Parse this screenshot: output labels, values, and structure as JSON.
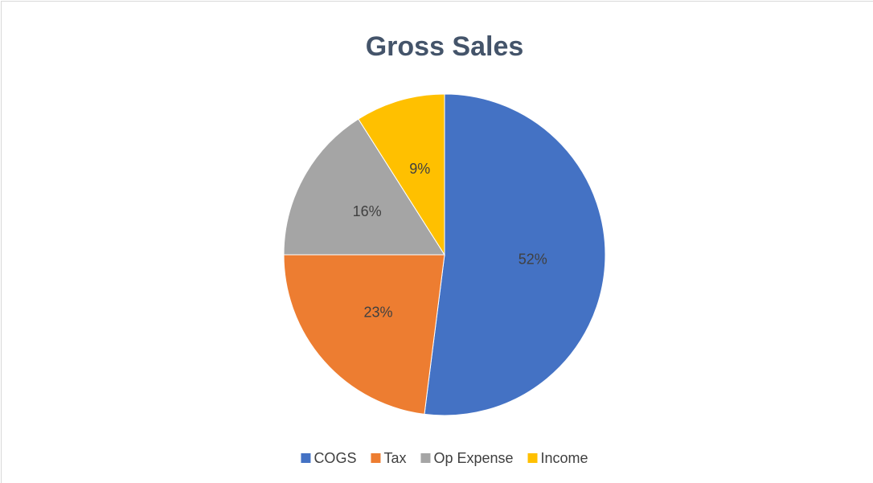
{
  "chart_data": {
    "type": "pie",
    "title": "Gross Sales",
    "categories": [
      "COGS",
      "Tax",
      "Op Expense",
      "Income"
    ],
    "values": [
      52,
      23,
      16,
      9
    ],
    "value_labels": [
      "52%",
      "23%",
      "16%",
      "9%"
    ],
    "colors": [
      "#4472c4",
      "#ed7d31",
      "#a5a5a5",
      "#ffc000"
    ],
    "legend": "bottom"
  }
}
